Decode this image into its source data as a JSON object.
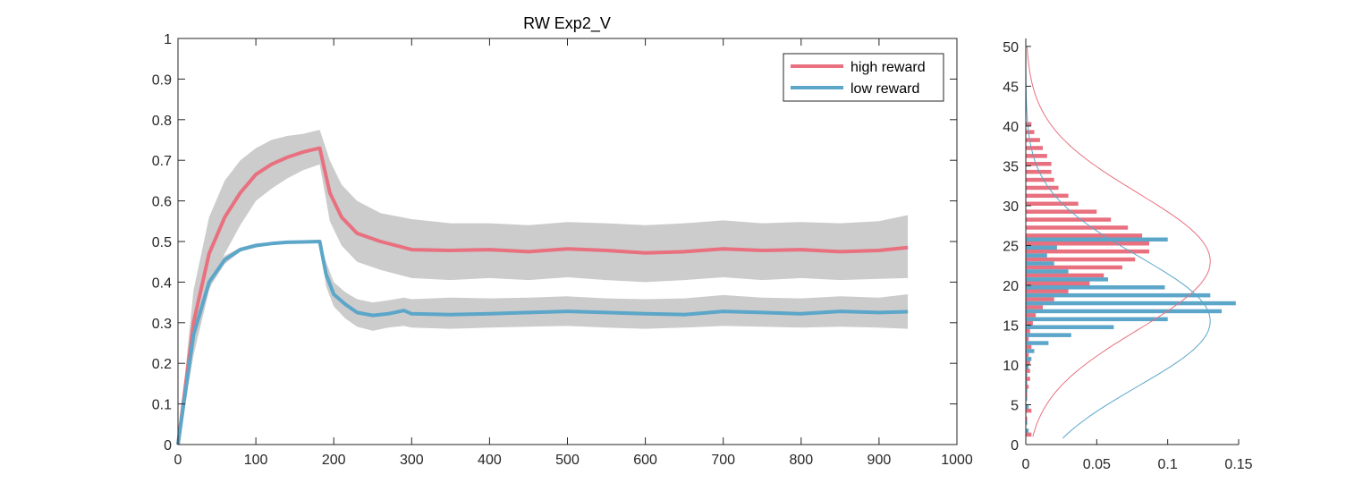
{
  "colors": {
    "high": "#e8707f",
    "low": "#5ba6c9",
    "band": "#cccccc",
    "axis": "#262626"
  },
  "chart_data": [
    {
      "type": "line",
      "title": "RW  Exp2_V",
      "xlabel": "",
      "ylabel": "",
      "xlim": [
        0,
        1000
      ],
      "ylim": [
        0,
        1
      ],
      "xticks": [
        "0",
        "100",
        "200",
        "300",
        "400",
        "500",
        "600",
        "700",
        "800",
        "900",
        "1000"
      ],
      "yticks": [
        "0",
        "0.1",
        "0.2",
        "0.3",
        "0.4",
        "0.5",
        "0.6",
        "0.7",
        "0.8",
        "0.9",
        "1"
      ],
      "grid": false,
      "legend_position": "top-right",
      "series": [
        {
          "name": "high reward",
          "x": [
            0,
            20,
            40,
            60,
            80,
            100,
            120,
            140,
            160,
            182,
            195,
            210,
            230,
            260,
            300,
            350,
            400,
            450,
            500,
            550,
            600,
            650,
            700,
            750,
            800,
            850,
            900,
            937
          ],
          "y": [
            0,
            0.3,
            0.47,
            0.56,
            0.62,
            0.665,
            0.69,
            0.707,
            0.72,
            0.73,
            0.62,
            0.56,
            0.52,
            0.5,
            0.48,
            0.478,
            0.48,
            0.475,
            0.482,
            0.478,
            0.472,
            0.475,
            0.482,
            0.478,
            0.48,
            0.475,
            0.478,
            0.485
          ],
          "upper": [
            0,
            0.38,
            0.56,
            0.65,
            0.7,
            0.73,
            0.75,
            0.76,
            0.765,
            0.775,
            0.7,
            0.64,
            0.6,
            0.57,
            0.555,
            0.545,
            0.545,
            0.54,
            0.548,
            0.545,
            0.54,
            0.545,
            0.552,
            0.545,
            0.548,
            0.545,
            0.55,
            0.565
          ],
          "lower": [
            0,
            0.22,
            0.38,
            0.47,
            0.54,
            0.6,
            0.63,
            0.655,
            0.675,
            0.69,
            0.55,
            0.49,
            0.45,
            0.43,
            0.41,
            0.405,
            0.41,
            0.405,
            0.412,
            0.405,
            0.4,
            0.405,
            0.412,
            0.405,
            0.41,
            0.405,
            0.408,
            0.41
          ]
        },
        {
          "name": "low reward",
          "x": [
            0,
            20,
            40,
            60,
            80,
            100,
            120,
            140,
            160,
            182,
            190,
            200,
            215,
            230,
            250,
            270,
            290,
            300,
            350,
            400,
            450,
            500,
            550,
            600,
            650,
            700,
            750,
            800,
            850,
            900,
            937
          ],
          "y": [
            0,
            0.27,
            0.4,
            0.455,
            0.48,
            0.49,
            0.495,
            0.498,
            0.499,
            0.5,
            0.42,
            0.37,
            0.345,
            0.325,
            0.318,
            0.322,
            0.33,
            0.322,
            0.32,
            0.322,
            0.325,
            0.328,
            0.325,
            0.322,
            0.32,
            0.328,
            0.325,
            0.322,
            0.328,
            0.325,
            0.327
          ],
          "upper": [
            0,
            0.29,
            0.415,
            0.465,
            0.485,
            0.495,
            0.498,
            0.5,
            0.5,
            0.501,
            0.45,
            0.4,
            0.375,
            0.358,
            0.35,
            0.355,
            0.362,
            0.358,
            0.362,
            0.36,
            0.362,
            0.365,
            0.36,
            0.358,
            0.36,
            0.368,
            0.362,
            0.36,
            0.365,
            0.362,
            0.37
          ],
          "lower": [
            0,
            0.25,
            0.385,
            0.445,
            0.475,
            0.485,
            0.492,
            0.496,
            0.498,
            0.499,
            0.39,
            0.34,
            0.31,
            0.29,
            0.28,
            0.288,
            0.292,
            0.288,
            0.285,
            0.288,
            0.29,
            0.292,
            0.288,
            0.285,
            0.288,
            0.292,
            0.29,
            0.288,
            0.29,
            0.288,
            0.285
          ]
        }
      ]
    },
    {
      "type": "bar",
      "orientation": "horizontal",
      "title": "",
      "xlim": [
        0,
        0.15
      ],
      "ylim": [
        0,
        51
      ],
      "xticks": [
        "0",
        "0.05",
        "0.1",
        "0.15"
      ],
      "yticks": [
        "0",
        "5",
        "10",
        "15",
        "20",
        "25",
        "30",
        "35",
        "40",
        "45",
        "50"
      ],
      "categories": [
        1,
        2,
        3,
        4,
        5,
        6,
        7,
        8,
        9,
        10,
        11,
        12,
        13,
        14,
        15,
        16,
        17,
        18,
        19,
        20,
        21,
        22,
        23,
        24,
        25,
        26,
        27,
        28,
        29,
        30,
        31,
        32,
        33,
        34,
        35,
        36,
        37,
        38,
        39,
        40
      ],
      "series": [
        {
          "name": "high reward",
          "values": [
            0.004,
            0,
            0.001,
            0.004,
            0,
            0.001,
            0.002,
            0.003,
            0.003,
            0.003,
            0.002,
            0.004,
            0.002,
            0.003,
            0.005,
            0.007,
            0.012,
            0.02,
            0.03,
            0.045,
            0.055,
            0.068,
            0.077,
            0.087,
            0.087,
            0.082,
            0.072,
            0.06,
            0.05,
            0.037,
            0.03,
            0.023,
            0.02,
            0.018,
            0.018,
            0.015,
            0.012,
            0.01,
            0.006,
            0.004
          ]
        },
        {
          "name": "low reward",
          "values": [
            0,
            0.002,
            0.001,
            0,
            0.002,
            0.001,
            0.001,
            0.001,
            0.001,
            0.002,
            0.004,
            0.006,
            0.016,
            0.032,
            0.062,
            0.1,
            0.138,
            0.148,
            0.13,
            0.098,
            0.058,
            0.03,
            0.02,
            0.015,
            0.022,
            0.1,
            0,
            0,
            0,
            0,
            0,
            0,
            0,
            0,
            0,
            0,
            0,
            0,
            0,
            0
          ]
        }
      ],
      "fits": [
        {
          "series": "high reward",
          "mean": 23,
          "sd": 8.6,
          "scale": 0.13
        },
        {
          "series": "low reward",
          "mean": 15.5,
          "sd": 8.2,
          "scale": 0.13
        }
      ]
    }
  ]
}
